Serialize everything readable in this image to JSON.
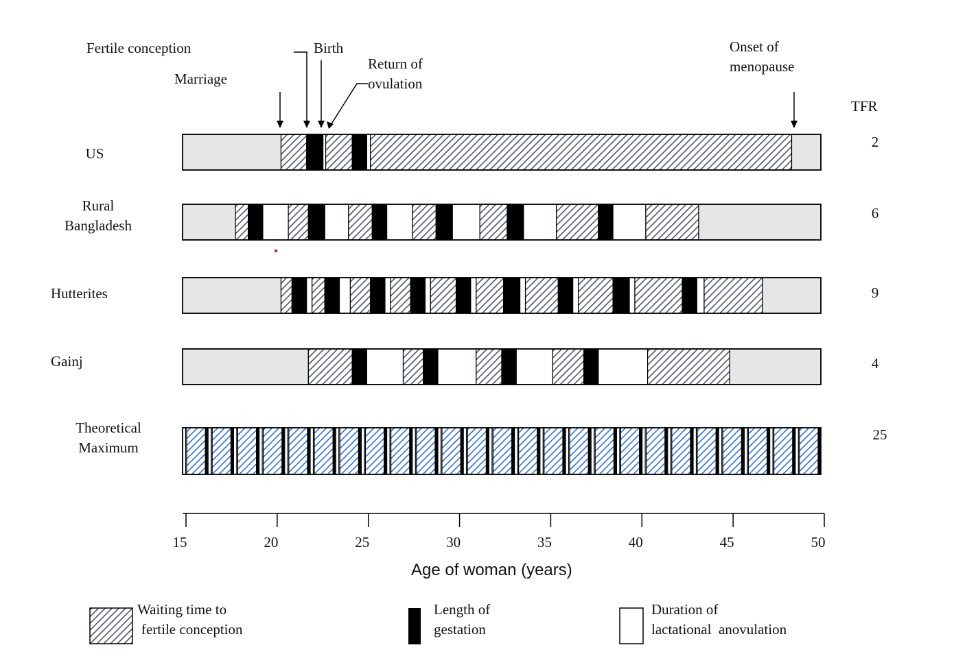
{
  "annotations": {
    "fertile_conception": "Fertile conception",
    "marriage": "Marriage",
    "birth": "Birth",
    "return_line1": "Return of",
    "return_line2": "ovulation",
    "onset_line1": "Onset of",
    "onset_line2": "menopause",
    "tfr_header": "TFR"
  },
  "axis": {
    "title": "Age of woman (years)"
  },
  "legend": {
    "waiting_l1": "Waiting time to",
    "waiting_l2": "fertile conception",
    "gestation_l1": "Length of",
    "gestation_l2": "gestation",
    "lactation_l1": "Duration of",
    "lactation_l2": "lactational  anovulation"
  },
  "colors": {
    "pre": "#e6e6e6",
    "hatch": "#4a5568",
    "hatch_blue": "#2f6fd0",
    "gestation": "#000000",
    "lactation": "#ffffff"
  },
  "chart_data": {
    "type": "timeline",
    "xlabel": "Age of woman (years)",
    "xlim": [
      15,
      50
    ],
    "xticks": [
      15,
      20,
      25,
      30,
      35,
      40,
      45,
      50
    ],
    "states": [
      "pre",
      "waiting",
      "gestation",
      "lactation"
    ],
    "rows": [
      {
        "name_l1": "US",
        "name_l2": "",
        "tfr": "2",
        "segments": [
          [
            "pre",
            15,
            20.4
          ],
          [
            "waiting",
            20.4,
            21.8
          ],
          [
            "gestation",
            21.8,
            22.7
          ],
          [
            "lactation",
            22.7,
            22.85
          ],
          [
            "waiting",
            22.85,
            24.3
          ],
          [
            "gestation",
            24.3,
            25.1
          ],
          [
            "lactation",
            25.1,
            25.3
          ],
          [
            "waiting",
            25.3,
            48.4
          ],
          [
            "pre",
            48.4,
            50
          ]
        ]
      },
      {
        "name_l1": "Rural",
        "name_l2": "Bangladesh",
        "tfr": "6",
        "segments": [
          [
            "pre",
            15,
            17.9
          ],
          [
            "waiting",
            17.9,
            18.6
          ],
          [
            "gestation",
            18.6,
            19.4
          ],
          [
            "lactation",
            19.4,
            20.8
          ],
          [
            "waiting",
            20.8,
            21.9
          ],
          [
            "gestation",
            21.9,
            22.8
          ],
          [
            "lactation",
            22.8,
            24.1
          ],
          [
            "waiting",
            24.1,
            25.4
          ],
          [
            "gestation",
            25.4,
            26.2
          ],
          [
            "lactation",
            26.2,
            27.6
          ],
          [
            "waiting",
            27.6,
            28.9
          ],
          [
            "gestation",
            28.9,
            29.8
          ],
          [
            "lactation",
            29.8,
            31.3
          ],
          [
            "waiting",
            31.3,
            32.8
          ],
          [
            "gestation",
            32.8,
            33.7
          ],
          [
            "lactation",
            33.7,
            35.5
          ],
          [
            "waiting",
            35.5,
            37.8
          ],
          [
            "gestation",
            37.8,
            38.6
          ],
          [
            "lactation",
            38.6,
            40.4
          ],
          [
            "waiting",
            40.4,
            43.3
          ],
          [
            "pre",
            43.3,
            50
          ]
        ]
      },
      {
        "name_l1": "Hutterites",
        "name_l2": "",
        "tfr": "9",
        "segments": [
          [
            "pre",
            15,
            20.4
          ],
          [
            "waiting",
            20.4,
            21.0
          ],
          [
            "gestation",
            21.0,
            21.8
          ],
          [
            "lactation",
            21.8,
            22.1
          ],
          [
            "waiting",
            22.1,
            22.8
          ],
          [
            "gestation",
            22.8,
            23.6
          ],
          [
            "lactation",
            23.6,
            24.2
          ],
          [
            "waiting",
            24.2,
            25.3
          ],
          [
            "gestation",
            25.3,
            26.1
          ],
          [
            "lactation",
            26.1,
            26.4
          ],
          [
            "waiting",
            26.4,
            27.5
          ],
          [
            "gestation",
            27.5,
            28.3
          ],
          [
            "lactation",
            28.3,
            28.6
          ],
          [
            "waiting",
            28.6,
            30.0
          ],
          [
            "gestation",
            30.0,
            30.8
          ],
          [
            "lactation",
            30.8,
            31.1
          ],
          [
            "waiting",
            31.1,
            32.6
          ],
          [
            "gestation",
            32.6,
            33.5
          ],
          [
            "lactation",
            33.5,
            33.8
          ],
          [
            "waiting",
            33.8,
            35.6
          ],
          [
            "gestation",
            35.6,
            36.4
          ],
          [
            "lactation",
            36.4,
            36.7
          ],
          [
            "waiting",
            36.7,
            38.6
          ],
          [
            "gestation",
            38.6,
            39.5
          ],
          [
            "lactation",
            39.5,
            39.8
          ],
          [
            "waiting",
            39.8,
            42.4
          ],
          [
            "gestation",
            42.4,
            43.2
          ],
          [
            "lactation",
            43.2,
            43.6
          ],
          [
            "waiting",
            43.6,
            46.8
          ],
          [
            "pre",
            46.8,
            50
          ]
        ]
      },
      {
        "name_l1": "Gainj",
        "name_l2": "",
        "tfr": "4",
        "segments": [
          [
            "pre",
            15,
            21.9
          ],
          [
            "waiting",
            21.9,
            24.3
          ],
          [
            "gestation",
            24.3,
            25.1
          ],
          [
            "lactation",
            25.1,
            27.1
          ],
          [
            "waiting",
            27.1,
            28.2
          ],
          [
            "gestation",
            28.2,
            29.0
          ],
          [
            "lactation",
            29.0,
            31.1
          ],
          [
            "waiting",
            31.1,
            32.5
          ],
          [
            "gestation",
            32.5,
            33.3
          ],
          [
            "lactation",
            33.3,
            35.3
          ],
          [
            "waiting",
            35.3,
            37.0
          ],
          [
            "gestation",
            37.0,
            37.8
          ],
          [
            "lactation",
            37.8,
            40.5
          ],
          [
            "waiting",
            40.5,
            45.0
          ],
          [
            "pre",
            45.0,
            50
          ]
        ]
      },
      {
        "name_l1": "Theoretical",
        "name_l2": "Maximum",
        "tfr": "25",
        "theoretical": true
      }
    ]
  }
}
